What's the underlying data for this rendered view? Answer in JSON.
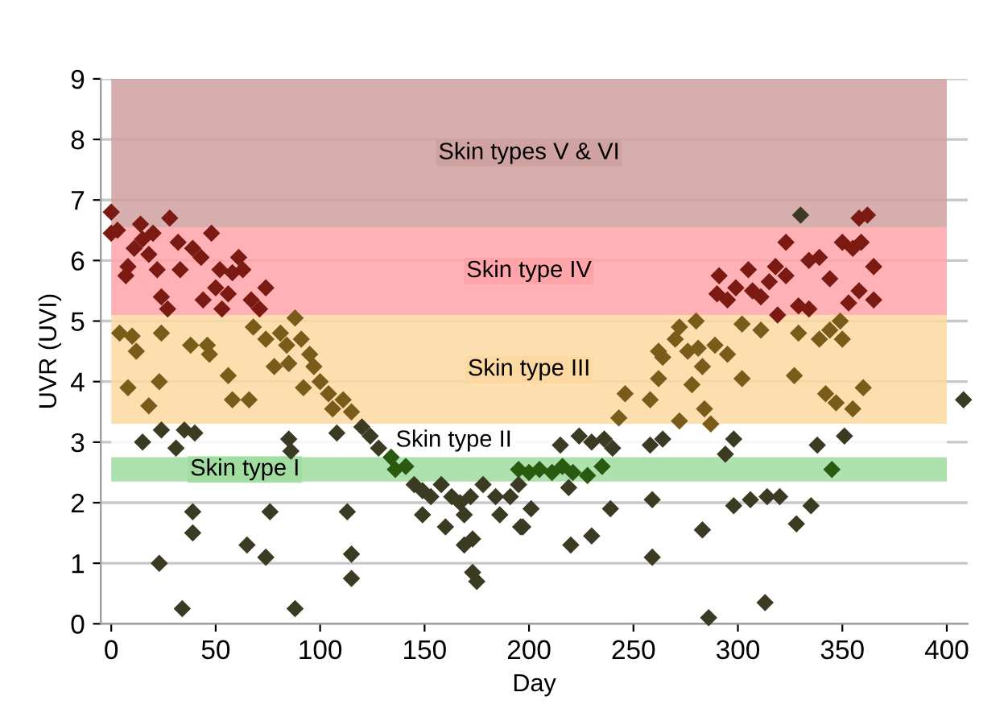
{
  "chart_data": {
    "type": "scatter",
    "xlabel": "Day",
    "ylabel": "UVR (UVI)",
    "xlim": [
      -5,
      410
    ],
    "xticks": [
      0,
      50,
      100,
      150,
      200,
      250,
      300,
      350,
      400
    ],
    "ylim": [
      0,
      9
    ],
    "yticks": [
      0,
      1,
      2,
      3,
      4,
      5,
      6,
      7,
      8,
      9
    ],
    "grid": "y",
    "marker": "diamond",
    "legend": false,
    "bands": [
      {
        "axis": "y",
        "from": 6.55,
        "to": 9,
        "label": "Skin types V & VI",
        "color": "#cfa0a0"
      },
      {
        "axis": "y",
        "from": 5.1,
        "to": 6.55,
        "label": "Skin type IV",
        "color": "#ffa3a8"
      },
      {
        "axis": "y",
        "from": 3.3,
        "to": 5.1,
        "label": "Skin type III",
        "color": "#fdd8a0"
      },
      {
        "axis": "y",
        "from": 2.75,
        "to": 3.3,
        "label": "Skin type II",
        "color": "#ffffff"
      },
      {
        "axis": "y",
        "from": 2.35,
        "to": 2.75,
        "label": "Skin type I",
        "color": "#9fdc9f"
      }
    ],
    "series": [
      {
        "color": "#7a1a12",
        "x": [
          0,
          0,
          3,
          7,
          8,
          11,
          14,
          15,
          18,
          20,
          22,
          24,
          27,
          28,
          32,
          33,
          39,
          43,
          44,
          48,
          50,
          52,
          53,
          56,
          58,
          61,
          63,
          67,
          71,
          74,
          319,
          291,
          290,
          295,
          299,
          305,
          307,
          311,
          315,
          318,
          323,
          329,
          334,
          323,
          339,
          334,
          344,
          350,
          355,
          359,
          358,
          362,
          365,
          358,
          365,
          353
        ],
        "values": [
          6.8,
          6.45,
          6.5,
          5.75,
          5.9,
          6.2,
          6.6,
          6.35,
          6.1,
          6.45,
          5.85,
          5.4,
          5.2,
          6.7,
          6.3,
          5.85,
          6.2,
          6.05,
          5.35,
          6.45,
          5.55,
          5.85,
          5.2,
          5.45,
          5.8,
          6.05,
          5.85,
          5.35,
          5.2,
          5.55,
          5.1,
          5.75,
          5.45,
          5.35,
          5.55,
          5.85,
          5.5,
          5.4,
          5.65,
          5.9,
          5.75,
          5.25,
          5.2,
          6.3,
          6.05,
          6.0,
          5.7,
          6.3,
          6.2,
          6.3,
          6.7,
          6.75,
          5.9,
          5.5,
          5.35,
          5.3
        ]
      },
      {
        "color": "#7a5c1a",
        "x": [
          4,
          12,
          10,
          8,
          18,
          24,
          23,
          38,
          46,
          47,
          56,
          58,
          66,
          68,
          74,
          78,
          81,
          84,
          85,
          88,
          91,
          95,
          97,
          92,
          100,
          104,
          106,
          111,
          115,
          243,
          246,
          258,
          262,
          264,
          262,
          270,
          272,
          276,
          281,
          289,
          280,
          283,
          278,
          284,
          287,
          272,
          295,
          302,
          302,
          311,
          329,
          339,
          344,
          349,
          350,
          327,
          342,
          347,
          355,
          360
        ],
        "values": [
          4.8,
          4.5,
          4.75,
          3.9,
          3.6,
          4.8,
          4.0,
          4.6,
          4.6,
          4.45,
          4.1,
          3.7,
          3.7,
          4.9,
          4.7,
          4.25,
          4.8,
          4.6,
          4.3,
          5.05,
          4.7,
          4.45,
          4.25,
          3.9,
          4.0,
          3.8,
          3.55,
          3.7,
          3.5,
          3.4,
          3.8,
          3.7,
          4.05,
          4.4,
          4.5,
          4.7,
          4.9,
          4.5,
          4.55,
          4.6,
          5.0,
          4.25,
          3.95,
          3.55,
          3.3,
          3.35,
          4.45,
          4.05,
          4.95,
          4.85,
          4.8,
          4.7,
          4.85,
          5.0,
          4.7,
          4.1,
          3.8,
          3.65,
          3.55,
          3.9
        ]
      },
      {
        "color": "#2a5a10",
        "x": [
          134,
          136,
          141,
          195,
          200,
          205,
          211,
          216,
          221,
          228,
          235,
          345
        ],
        "values": [
          2.75,
          2.55,
          2.6,
          2.55,
          2.5,
          2.55,
          2.5,
          2.6,
          2.5,
          2.45,
          2.6,
          2.55
        ]
      },
      {
        "color": "#3b3a22",
        "x": [
          120,
          124,
          128,
          145,
          149,
          153,
          158,
          163,
          167,
          169,
          172,
          178,
          184,
          186,
          191,
          195,
          15,
          24,
          31,
          35,
          40,
          39,
          39,
          23,
          34,
          65,
          74,
          76,
          85,
          86,
          88,
          108,
          113,
          115,
          115,
          149,
          160,
          169,
          173,
          173,
          175,
          196,
          201,
          219,
          224,
          230,
          236,
          240,
          215,
          239,
          230,
          220,
          197,
          258,
          264,
          259,
          259,
          286,
          283,
          294,
          298,
          298,
          306,
          314,
          320,
          313,
          338,
          351,
          335,
          328,
          330,
          408
        ],
        "values": [
          3.25,
          3.1,
          2.9,
          2.3,
          2.2,
          2.1,
          2.3,
          2.1,
          2.0,
          1.8,
          2.1,
          2.3,
          2.1,
          1.8,
          2.1,
          2.3,
          3.0,
          3.2,
          2.9,
          3.2,
          3.15,
          1.85,
          1.5,
          1.0,
          0.25,
          1.3,
          1.1,
          1.85,
          3.05,
          2.85,
          0.25,
          3.15,
          1.85,
          1.15,
          0.75,
          1.8,
          1.6,
          1.3,
          1.4,
          0.85,
          0.7,
          1.6,
          1.9,
          2.25,
          3.1,
          3.0,
          3.05,
          2.9,
          2.95,
          1.9,
          1.45,
          1.3,
          1.6,
          2.95,
          3.05,
          2.05,
          1.1,
          0.1,
          1.55,
          2.8,
          3.05,
          1.95,
          2.05,
          2.1,
          2.1,
          0.35,
          2.95,
          3.1,
          1.95,
          1.65,
          6.75,
          3.7
        ]
      }
    ]
  }
}
